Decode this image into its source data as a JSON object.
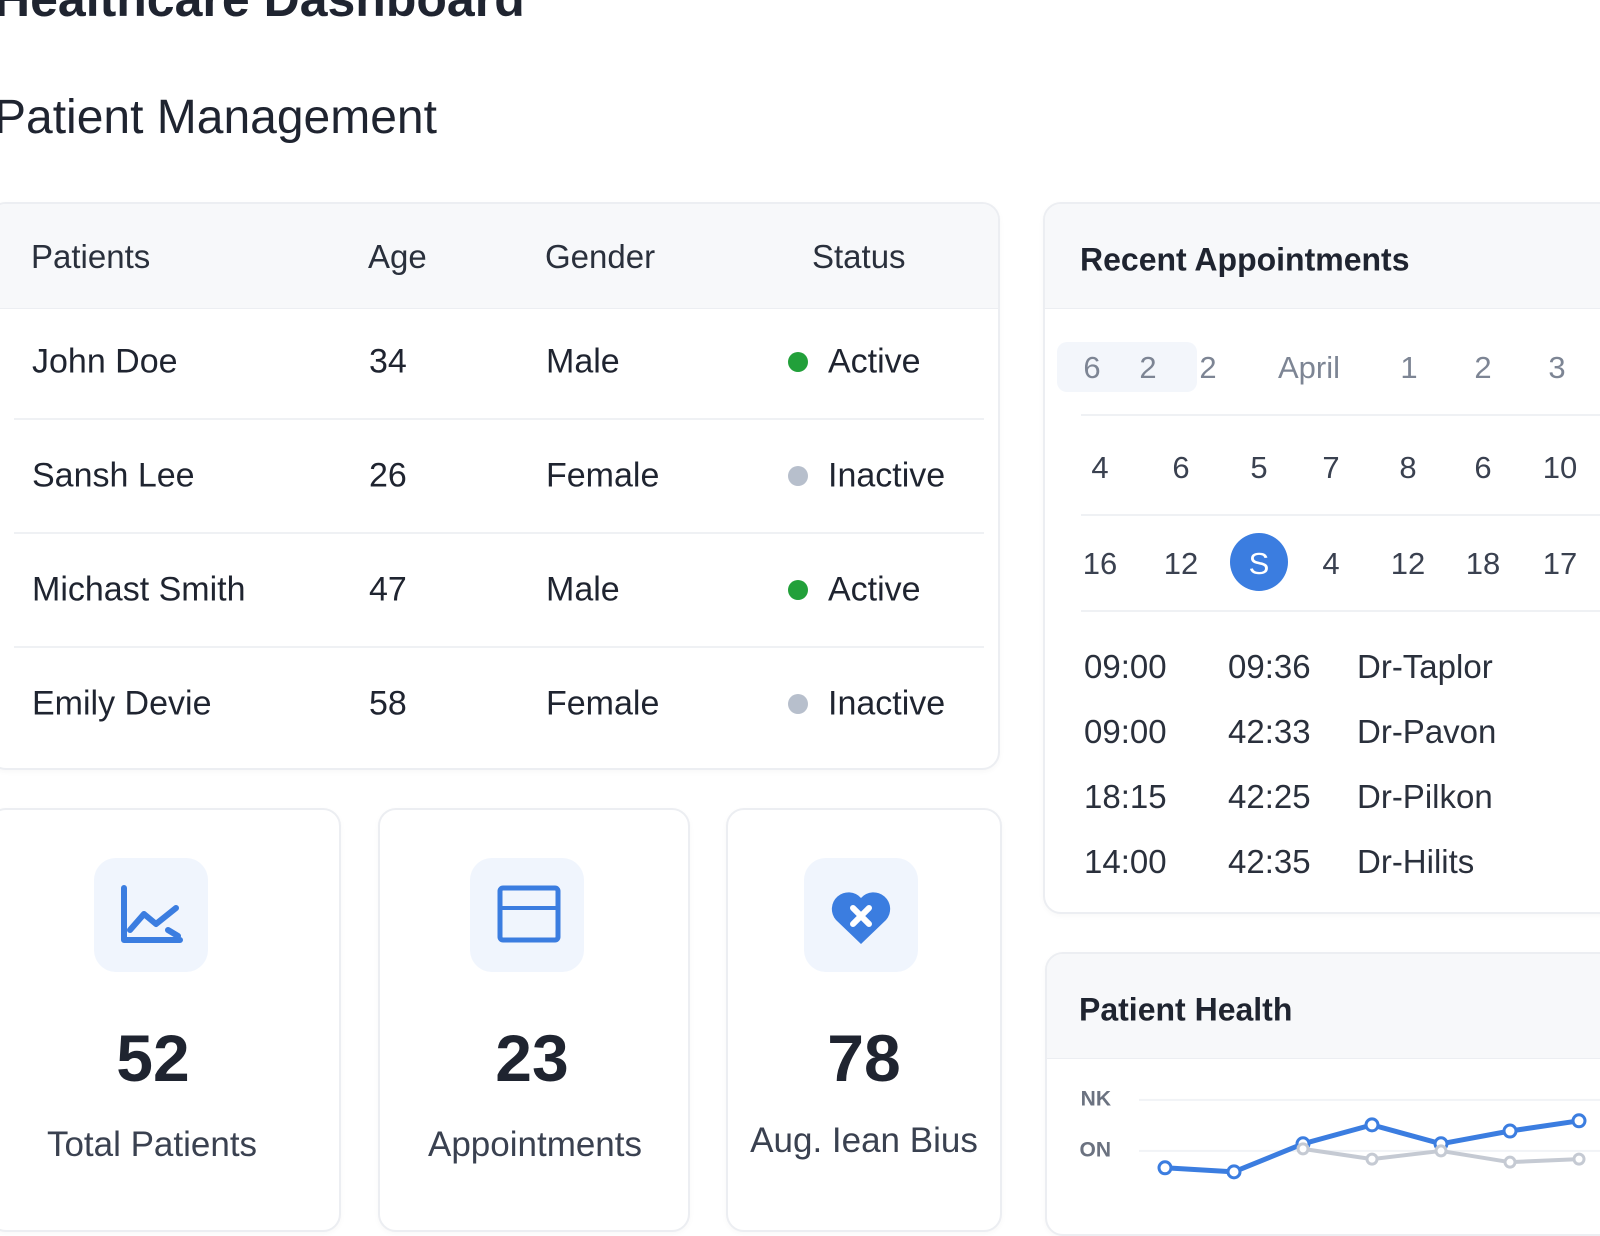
{
  "header": {
    "title": "Healthcare Dashboard",
    "subtitle": "Patient Management"
  },
  "table": {
    "columns": [
      "Patients",
      "Age",
      "Gender",
      "Status"
    ],
    "rows": [
      [
        "John Doe",
        "34",
        "Male",
        "Active"
      ],
      [
        "Sansh Lee",
        "26",
        "Female",
        "Inactive"
      ],
      [
        "Michast Smith",
        "47",
        "Male",
        "Active"
      ],
      [
        "Emily Devie",
        "58",
        "Female",
        "Inactive"
      ]
    ]
  },
  "appointments": {
    "title": "Recent Appointments",
    "calendar": [
      [
        "6",
        "2",
        "2",
        "April",
        "1",
        "2",
        "3"
      ],
      [
        "4",
        "6",
        "5",
        "7",
        "8",
        "6",
        "10"
      ],
      [
        "16",
        "12",
        "S",
        "4",
        "12",
        "18",
        "17"
      ]
    ],
    "list": [
      [
        "09:00",
        "09:36",
        "Dr-Taplor"
      ],
      [
        "09:00",
        "42:33",
        "Dr-Pavon"
      ],
      [
        "18:15",
        "42:25",
        "Dr-Pilkon"
      ],
      [
        "14:00",
        "42:35",
        "Dr-Hilits"
      ]
    ]
  },
  "stats": [
    {
      "value": "52",
      "label": "Total Patients"
    },
    {
      "value": "23",
      "label": "Appointments"
    },
    {
      "value": "78",
      "label": "Aug. Iean Bius"
    }
  ],
  "health": {
    "title": "Patient Health",
    "chart_data": {
      "type": "line",
      "ylim": [
        0,
        2.8
      ],
      "yticks": [
        {
          "value": 2,
          "label": "NK"
        },
        {
          "value": 1,
          "label": "ON"
        }
      ],
      "series": [
        {
          "color": "#3b7de0",
          "values": [
            0.67,
            0.59,
            1.14,
            1.51,
            1.14,
            1.39,
            1.59
          ]
        },
        {
          "color": "#c5cad3",
          "values": [
            null,
            null,
            1.04,
            0.84,
            1.0,
            0.78,
            0.84
          ]
        }
      ]
    }
  }
}
